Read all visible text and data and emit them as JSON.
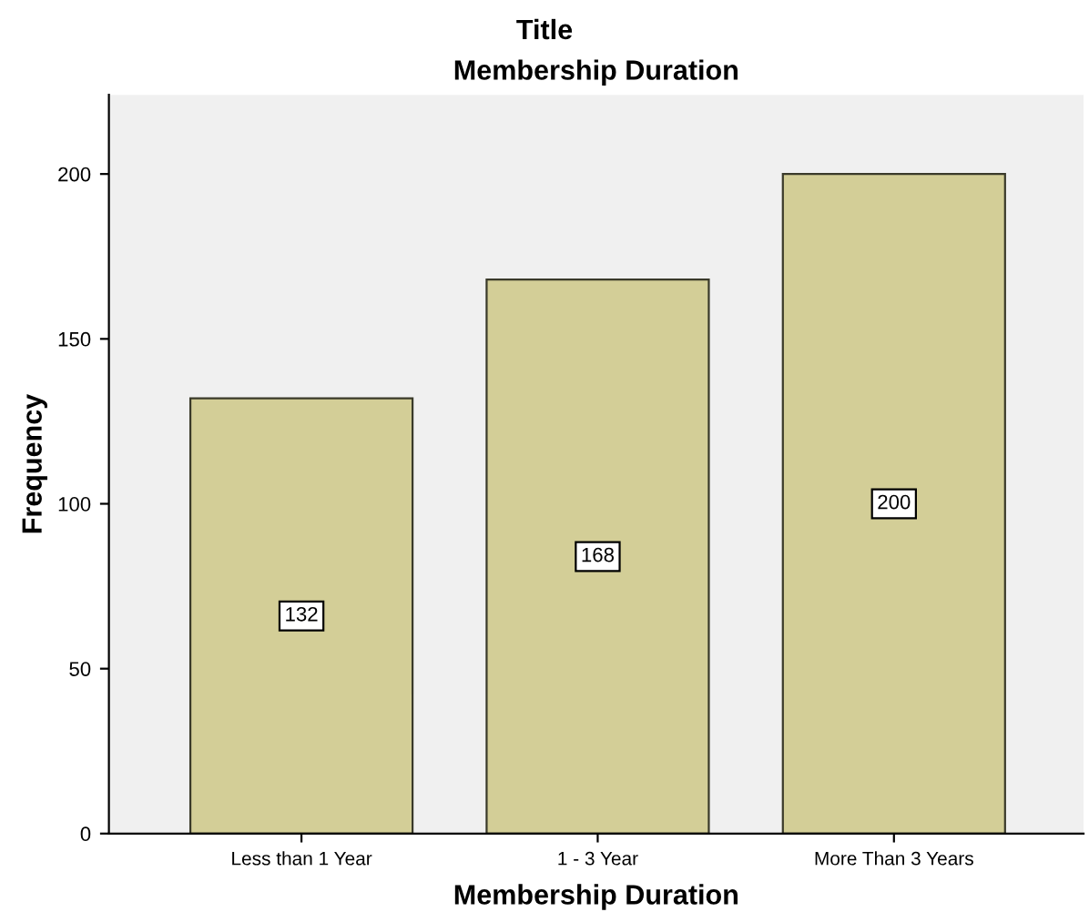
{
  "chart_data": {
    "type": "bar",
    "title": "Title",
    "subtitle": "Membership Duration",
    "xlabel": "Membership Duration",
    "ylabel": "Frequency",
    "categories": [
      "Less than 1 Year",
      "1 - 3 Year",
      "More Than 3 Years"
    ],
    "values": [
      132,
      168,
      200
    ],
    "color": "#d3ce97",
    "ylim": [
      0,
      224
    ],
    "yticks": [
      0,
      50,
      100,
      150,
      200
    ],
    "data_labels": true,
    "grid": false,
    "legend": false
  }
}
